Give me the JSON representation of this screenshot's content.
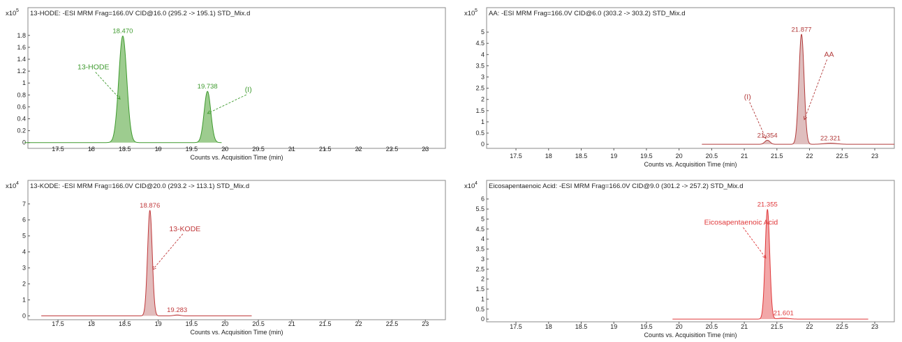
{
  "chart_data": [
    {
      "type": "line",
      "title": "13-HODE: -ESI MRM Frag=166.0V CID@16.0 (295.2 -> 195.1) STD_Mix.d",
      "xlabel": "Counts vs. Acquisition Time (min)",
      "scale_label": "x10",
      "scale_exp": "5",
      "xlim": [
        17.05,
        23.3
      ],
      "ylim": [
        -0.05,
        2.02
      ],
      "xticks": [
        17.5,
        18,
        18.5,
        19,
        19.5,
        20,
        20.5,
        21,
        21.5,
        22,
        22.5,
        23
      ],
      "xtick_labels": [
        "17.5",
        "18",
        "18.5",
        "19",
        "19.5",
        "20",
        "20.5",
        "21",
        "21.5",
        "22",
        "22.5",
        "23"
      ],
      "yticks": [
        0,
        0.2,
        0.4,
        0.6,
        0.8,
        1,
        1.2,
        1.4,
        1.6,
        1.8
      ],
      "ytick_labels": [
        "0",
        "0.2",
        "0.4",
        "0.6",
        "0.8",
        "1",
        "1.2",
        "1.4",
        "1.6",
        "1.8"
      ],
      "color": "#3e9a2e",
      "fill": "#7cbb6a",
      "trace_range": [
        17.0,
        19.95
      ],
      "peaks": [
        {
          "rt": 18.47,
          "height": 1.79,
          "width": 0.06,
          "label": "18.470"
        },
        {
          "rt": 19.738,
          "height": 0.86,
          "width": 0.05,
          "label": "19.738"
        }
      ],
      "annotations": [
        {
          "text": "13-HODE",
          "x": 18.03,
          "y": 1.23,
          "to_x": 18.43,
          "to_y": 0.73
        },
        {
          "text": "(I)",
          "x": 20.35,
          "y": 0.85,
          "to_x": 19.74,
          "to_y": 0.49
        }
      ]
    },
    {
      "type": "line",
      "title": "AA: -ESI MRM Frag=166.0V CID@6.0 (303.2 -> 303.2) STD_Mix.d",
      "xlabel": "Counts vs. Acquisition Time (min)",
      "scale_label": "x10",
      "scale_exp": "5",
      "xlim": [
        17.05,
        23.3
      ],
      "ylim": [
        -0.15,
        5.5
      ],
      "xticks": [
        17.5,
        18,
        18.5,
        19,
        19.5,
        20,
        20.5,
        21,
        21.5,
        22,
        22.5,
        23
      ],
      "xtick_labels": [
        "17.5",
        "18",
        "18.5",
        "19",
        "19.5",
        "20",
        "20.5",
        "21",
        "21.5",
        "22",
        "22.5",
        "23"
      ],
      "yticks": [
        0,
        0.5,
        1,
        1.5,
        2,
        2.5,
        3,
        3.5,
        4,
        4.5,
        5
      ],
      "ytick_labels": [
        "0",
        "0.5",
        "1",
        "1.5",
        "2",
        "2.5",
        "3",
        "3.5",
        "4",
        "4.5",
        "5"
      ],
      "color": "#b23a3a",
      "fill": "#d4a8a8",
      "trace_range": [
        20.35,
        23.3
      ],
      "peaks": [
        {
          "rt": 21.354,
          "height": 0.18,
          "width": 0.04,
          "label": "21.354"
        },
        {
          "rt": 21.877,
          "height": 4.9,
          "width": 0.04,
          "label": "21.877"
        },
        {
          "rt": 22.321,
          "height": 0.05,
          "width": 0.1,
          "label": "22.321"
        }
      ],
      "annotations": [
        {
          "text": "AA",
          "x": 22.3,
          "y": 3.9,
          "to_x": 21.92,
          "to_y": 1.1
        },
        {
          "text": "(I)",
          "x": 21.05,
          "y": 2.0,
          "to_x": 21.33,
          "to_y": 0.26
        }
      ]
    },
    {
      "type": "line",
      "title": "13-KODE: -ESI MRM Frag=166.0V CID@20.0 (293.2 -> 113.1) STD_Mix.d",
      "xlabel": "Counts vs. Acquisition Time (min)",
      "scale_label": "x10",
      "scale_exp": "4",
      "xlim": [
        17.05,
        23.3
      ],
      "ylim": [
        -0.15,
        7.6
      ],
      "xticks": [
        17.5,
        18,
        18.5,
        19,
        19.5,
        20,
        20.5,
        21,
        21.5,
        22,
        22.5,
        23
      ],
      "xtick_labels": [
        "17.5",
        "18",
        "18.5",
        "19",
        "19.5",
        "20",
        "20.5",
        "21",
        "21.5",
        "22",
        "22.5",
        "23"
      ],
      "yticks": [
        0,
        1,
        2,
        3,
        4,
        5,
        6,
        7
      ],
      "ytick_labels": [
        "0",
        "1",
        "2",
        "3",
        "4",
        "5",
        "6",
        "7"
      ],
      "color": "#c0393b",
      "fill": "#d8a5a6",
      "trace_range": [
        17.25,
        20.4
      ],
      "peaks": [
        {
          "rt": 18.876,
          "height": 6.6,
          "width": 0.035,
          "label": "18.876"
        },
        {
          "rt": 19.283,
          "height": 0.06,
          "width": 0.05,
          "label": "19.283"
        }
      ],
      "annotations": [
        {
          "text": "13-KODE",
          "x": 19.4,
          "y": 5.3,
          "to_x": 18.92,
          "to_y": 2.9
        }
      ]
    },
    {
      "type": "line",
      "title": "Eicosapentaenoic Acid: -ESI MRM Frag=166.0V CID@9.0 (301.2 -> 257.2) STD_Mix.d",
      "xlabel": "Counts vs. Acquisition Time (min)",
      "scale_label": "x10",
      "scale_exp": "4",
      "xlim": [
        17.05,
        23.3
      ],
      "ylim": [
        -0.1,
        6.2
      ],
      "xticks": [
        17.5,
        18,
        18.5,
        19,
        19.5,
        20,
        20.5,
        21,
        21.5,
        22,
        22.5,
        23
      ],
      "xtick_labels": [
        "17.5",
        "18",
        "18.5",
        "19",
        "19.5",
        "20",
        "20.5",
        "21",
        "21.5",
        "22",
        "22.5",
        "23"
      ],
      "yticks": [
        0,
        0.5,
        1,
        1.5,
        2,
        2.5,
        3,
        3.5,
        4,
        4.5,
        5,
        5.5,
        6
      ],
      "ytick_labels": [
        "0",
        "0.5",
        "1",
        "1.5",
        "2",
        "2.5",
        "3",
        "3.5",
        "4",
        "4.5",
        "5",
        "5.5",
        "6"
      ],
      "color": "#e0383a",
      "fill": "#ee8a8b",
      "trace_range": [
        19.9,
        22.9
      ],
      "peaks": [
        {
          "rt": 21.355,
          "height": 5.48,
          "width": 0.035,
          "label": "21.355"
        },
        {
          "rt": 21.601,
          "height": 0.05,
          "width": 0.08,
          "label": "21.601"
        }
      ],
      "annotations": [
        {
          "text": "Eicosapentaenoic Acid",
          "x": 20.95,
          "y": 4.72,
          "to_x": 21.33,
          "to_y": 3.05
        }
      ]
    }
  ]
}
